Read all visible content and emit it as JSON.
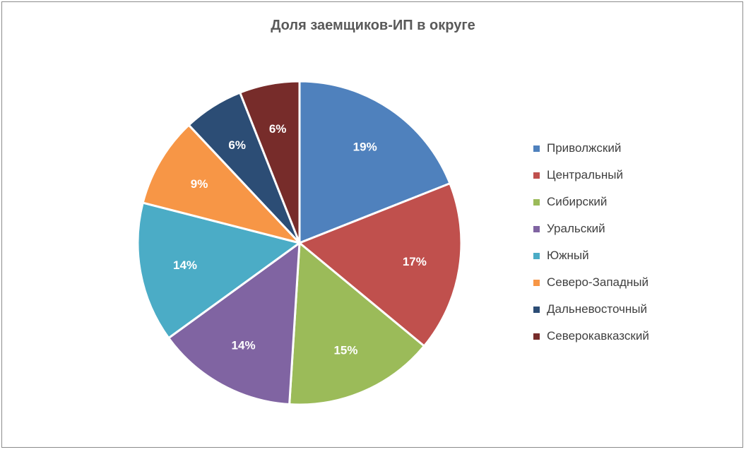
{
  "chart_data": {
    "type": "pie",
    "title": "Доля заемщиков-ИП в округе",
    "categories": [
      "Приволжский",
      "Центральный",
      "Сибирский",
      "Уральский",
      "Южный",
      "Северо-Западный",
      "Дальневосточный",
      "Северокавказский"
    ],
    "values": [
      19,
      17,
      15,
      14,
      14,
      9,
      6,
      6
    ],
    "labels": [
      "19%",
      "17%",
      "15%",
      "14%",
      "14%",
      "9%",
      "6%",
      "6%"
    ],
    "colors": [
      "#4F81BD",
      "#C0504D",
      "#9BBB59",
      "#8064A2",
      "#4BACC6",
      "#F79646",
      "#2C4D75",
      "#772C2A"
    ],
    "legend_position": "right"
  }
}
